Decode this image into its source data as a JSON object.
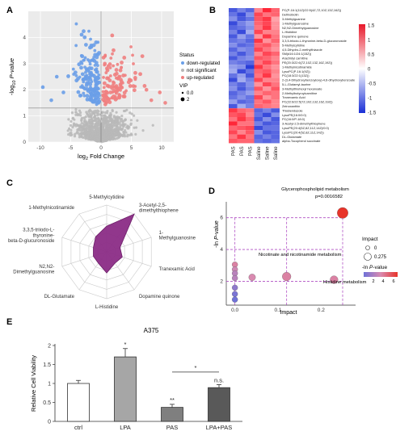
{
  "panels": {
    "A": {
      "letter": "A"
    },
    "B": {
      "letter": "B"
    },
    "C": {
      "letter": "C"
    },
    "D": {
      "letter": "D"
    },
    "E": {
      "letter": "E"
    }
  },
  "colors": {
    "down": "#6a9fe8",
    "ns": "#b8b8b8",
    "up": "#ef7f7f",
    "radar_fill": "#8b2c86",
    "dash": "#b04fc4",
    "bar_ctrl": "#ffffff",
    "bar_lpa": "#a6a6a6",
    "bar_pas": "#7f7f7f",
    "bar_lpapas": "#595959"
  },
  "chart_data": [
    {
      "type": "scatter",
      "panel": "A",
      "xlabel_base": "log",
      "xlabel_sub": "2",
      "xlabel_rest": " Fold Change",
      "ylabel_pre": "-log",
      "ylabel_sub": "10",
      "ylabel_post": " P-value",
      "xlim": [
        -12,
        12
      ],
      "ylim": [
        0,
        5
      ],
      "xticks": [
        -10,
        -5,
        0,
        5,
        10
      ],
      "yticks": [
        0,
        1,
        2,
        3,
        4
      ],
      "legend": {
        "status_title": "Status",
        "items": [
          "down-regulated",
          "not significant",
          "up-regulated"
        ],
        "vip_title": "VIP",
        "vip_items": [
          "0.0",
          "2"
        ]
      },
      "threshold_y": 1.3
    },
    {
      "type": "heatmap",
      "panel": "B",
      "columns": [
        "PAS",
        "PAS",
        "PAS",
        "Saline",
        "Saline",
        "Saline"
      ],
      "rows": [
        "PC(P-16:1(11Z)/22:5(4Z,7Z,10Z,13Z,16Z))",
        "Dethiobiotin",
        "3-Methylguanine",
        "1-Methylguanosine",
        "N2,N2-Dimethylguanosine",
        "L-Histidine",
        "Dopamine quinone",
        "3,3,5-triiodo-L-thyronine-beta-D-glucuronoside",
        "5-Methylcytidine",
        "4,5-Dihydro-2-methylthiazole",
        "SM(d16:1/24:1(15Z))",
        "Arachidyl carnitine",
        "PE(20:3/22:6(7Z,10Z,13Z,16Z,19Z))",
        "1-Methylnicotinamide",
        "LysoPC(P-16:1(9Z))",
        "PC(18:3/22:1(13Z))",
        "2-(3,4-Dihydroxybenzoyloxy)-4,6-dihydroxybenzoate",
        "5-L-Glutamyl-taurine",
        "3-Methylthiohexyl hexanoate",
        "2-Methylbutyroylcarnitine",
        "Tranexamic Acid",
        "PC(22:6/22:5(7Z,10Z,13Z,16Z,19Z))",
        "Zeinoxanthin",
        "Thiabendazole",
        "LysoPE(16:0/0:0)",
        "PC(16:0/P-18:0)",
        "3-Acetyl-2,5-dimethylthiophene",
        "LysoPE(20:4(5Z,8Z,11Z,14Z)/0:0)",
        "LysoPC(20:4(5Z,8Z,11Z,14Z))",
        "DL-Glutamate",
        "alpha-Tocopherol succinate"
      ],
      "values": [
        [
          -1.2,
          -0.9,
          -1.1,
          0.8,
          1.4,
          1.0
        ],
        [
          -1.0,
          -1.3,
          -0.8,
          1.2,
          0.9,
          1.0
        ],
        [
          -0.8,
          -1.2,
          -1.0,
          1.1,
          1.3,
          0.6
        ],
        [
          -1.3,
          -0.9,
          -0.7,
          1.0,
          1.2,
          0.7
        ],
        [
          -1.1,
          -1.0,
          -0.8,
          0.9,
          1.3,
          0.7
        ],
        [
          -0.9,
          -1.3,
          -0.6,
          1.2,
          0.8,
          0.8
        ],
        [
          -1.2,
          -0.7,
          -1.0,
          0.7,
          1.3,
          0.9
        ],
        [
          -1.0,
          -0.9,
          -1.1,
          1.3,
          0.7,
          1.0
        ],
        [
          -0.8,
          -1.1,
          -1.0,
          1.0,
          1.1,
          0.8
        ],
        [
          -1.1,
          -0.8,
          -0.9,
          1.2,
          0.9,
          0.7
        ],
        [
          -0.9,
          -1.2,
          -0.9,
          0.8,
          1.2,
          1.0
        ],
        [
          -1.2,
          -0.9,
          -0.8,
          1.1,
          1.0,
          0.8
        ],
        [
          -0.9,
          -1.0,
          -1.1,
          0.9,
          1.2,
          0.9
        ],
        [
          -0.7,
          -0.8,
          -1.4,
          1.3,
          0.9,
          0.7
        ],
        [
          -0.6,
          -1.3,
          -1.0,
          1.0,
          1.1,
          0.8
        ],
        [
          -1.0,
          -0.7,
          -1.2,
          0.9,
          1.3,
          0.7
        ],
        [
          -1.3,
          -0.6,
          -0.9,
          1.2,
          0.8,
          0.8
        ],
        [
          -0.9,
          -1.1,
          -0.8,
          0.7,
          1.2,
          0.9
        ],
        [
          -0.8,
          -1.2,
          -0.9,
          1.1,
          0.7,
          1.1
        ],
        [
          -1.1,
          -0.9,
          -0.7,
          0.8,
          1.0,
          0.9
        ],
        [
          -1.0,
          -0.8,
          -1.0,
          1.2,
          0.7,
          0.9
        ],
        [
          -0.7,
          -1.1,
          -1.0,
          0.9,
          1.1,
          0.8
        ],
        [
          -1.2,
          -0.6,
          -0.9,
          1.0,
          0.9,
          0.8
        ],
        [
          1.3,
          1.0,
          0.9,
          -1.1,
          -0.9,
          -1.2
        ],
        [
          1.1,
          1.2,
          0.8,
          -1.0,
          -1.3,
          -0.8
        ],
        [
          0.9,
          1.3,
          1.0,
          -1.2,
          -0.8,
          -1.2
        ],
        [
          1.4,
          0.9,
          0.9,
          -0.9,
          -1.2,
          -1.1
        ],
        [
          1.0,
          1.1,
          1.2,
          -1.3,
          -1.0,
          -1.0
        ],
        [
          1.2,
          0.8,
          1.1,
          -0.8,
          -1.2,
          -1.1
        ],
        [
          0.9,
          1.3,
          0.9,
          -1.1,
          -0.9,
          -1.1
        ],
        [
          1.1,
          1.0,
          1.0,
          -1.0,
          -1.1,
          -1.0
        ]
      ],
      "scale_ticks": [
        "1.5",
        "1",
        "0.5",
        "0",
        "-0.5",
        "-1",
        "-1.5"
      ]
    },
    {
      "type": "radar",
      "panel": "C",
      "axes": [
        "5-Methylcytidine",
        "3-Acetyl-2,5-dimethylthiophene",
        "1-Methylguanosine",
        "Tranexamic Acid",
        "Dopamine quinone",
        "L-Histidine",
        "DL-Glutamate",
        "N2,N2-Dimethylguanosine",
        "3,3,5-triiodo-L-thyronine-beta-D-glucuronoside",
        "1-Methylnicotinamide"
      ],
      "values": [
        0.55,
        1.0,
        0.3,
        0.35,
        0.3,
        0.45,
        0.3,
        0.3,
        0.3,
        0.4
      ]
    },
    {
      "type": "scatter",
      "panel": "D",
      "xlabel": "Impact",
      "ylabel_pre": "-ln ",
      "ylabel_it": "P",
      "ylabel_post": "-value",
      "xlim": [
        -0.02,
        0.28
      ],
      "ylim": [
        0.5,
        7
      ],
      "xticks": [
        0.0,
        0.1,
        0.2
      ],
      "yticks": [
        2,
        4,
        6
      ],
      "hlines": [
        2,
        4,
        6
      ],
      "vlines": [
        0.0,
        0.12,
        0.25
      ],
      "points": [
        {
          "x": 0.25,
          "y": 6.3,
          "size": 0.9,
          "c": 1.0
        },
        {
          "x": 0.12,
          "y": 2.3,
          "size": 0.6,
          "c": 0.55
        },
        {
          "x": 0.23,
          "y": 2.1,
          "size": 0.5,
          "c": 0.55
        },
        {
          "x": 0.04,
          "y": 2.25,
          "size": 0.35,
          "c": 0.5
        },
        {
          "x": 0.0,
          "y": 3.05,
          "size": 0.2,
          "c": 0.55
        },
        {
          "x": 0.0,
          "y": 2.75,
          "size": 0.2,
          "c": 0.45
        },
        {
          "x": 0.0,
          "y": 2.5,
          "size": 0.2,
          "c": 0.35
        },
        {
          "x": 0.0,
          "y": 2.2,
          "size": 0.2,
          "c": 0.35
        },
        {
          "x": 0.0,
          "y": 1.6,
          "size": 0.2,
          "c": 0.15
        },
        {
          "x": 0.0,
          "y": 1.2,
          "size": 0.2,
          "c": 0.05
        },
        {
          "x": 0.0,
          "y": 0.85,
          "size": 0.2,
          "c": 0.0
        }
      ],
      "annotations": [
        "Glycerophospholipid metabolism",
        "p=0.0016582",
        "Nicotinate and nicotinamide metabolism",
        "Histidine metabolism"
      ],
      "legend": {
        "impact_title": "Impact",
        "impact_items": [
          "0",
          "0.275"
        ],
        "color_title_pre": "-ln ",
        "color_title_it": "P",
        "color_title_post": "-value",
        "color_ticks": [
          "2",
          "4",
          "6"
        ]
      }
    },
    {
      "type": "bar",
      "panel": "E",
      "title": "A375",
      "ylabel": "Relative Cell Viability",
      "categories": [
        "ctrl",
        "LPA",
        "PAS",
        "LPA+PAS"
      ],
      "values": [
        1.0,
        1.7,
        0.37,
        0.89
      ],
      "errors": [
        0.08,
        0.22,
        0.08,
        0.08
      ],
      "ylim": [
        0,
        2
      ],
      "yticks": [
        "0",
        "0.5",
        "1",
        "1.5",
        "2"
      ],
      "ytick_values": [
        0,
        0.5,
        1,
        1.5,
        2
      ],
      "significance": [
        "",
        "*",
        "**",
        "n.s."
      ],
      "bracket_label": "*"
    }
  ]
}
